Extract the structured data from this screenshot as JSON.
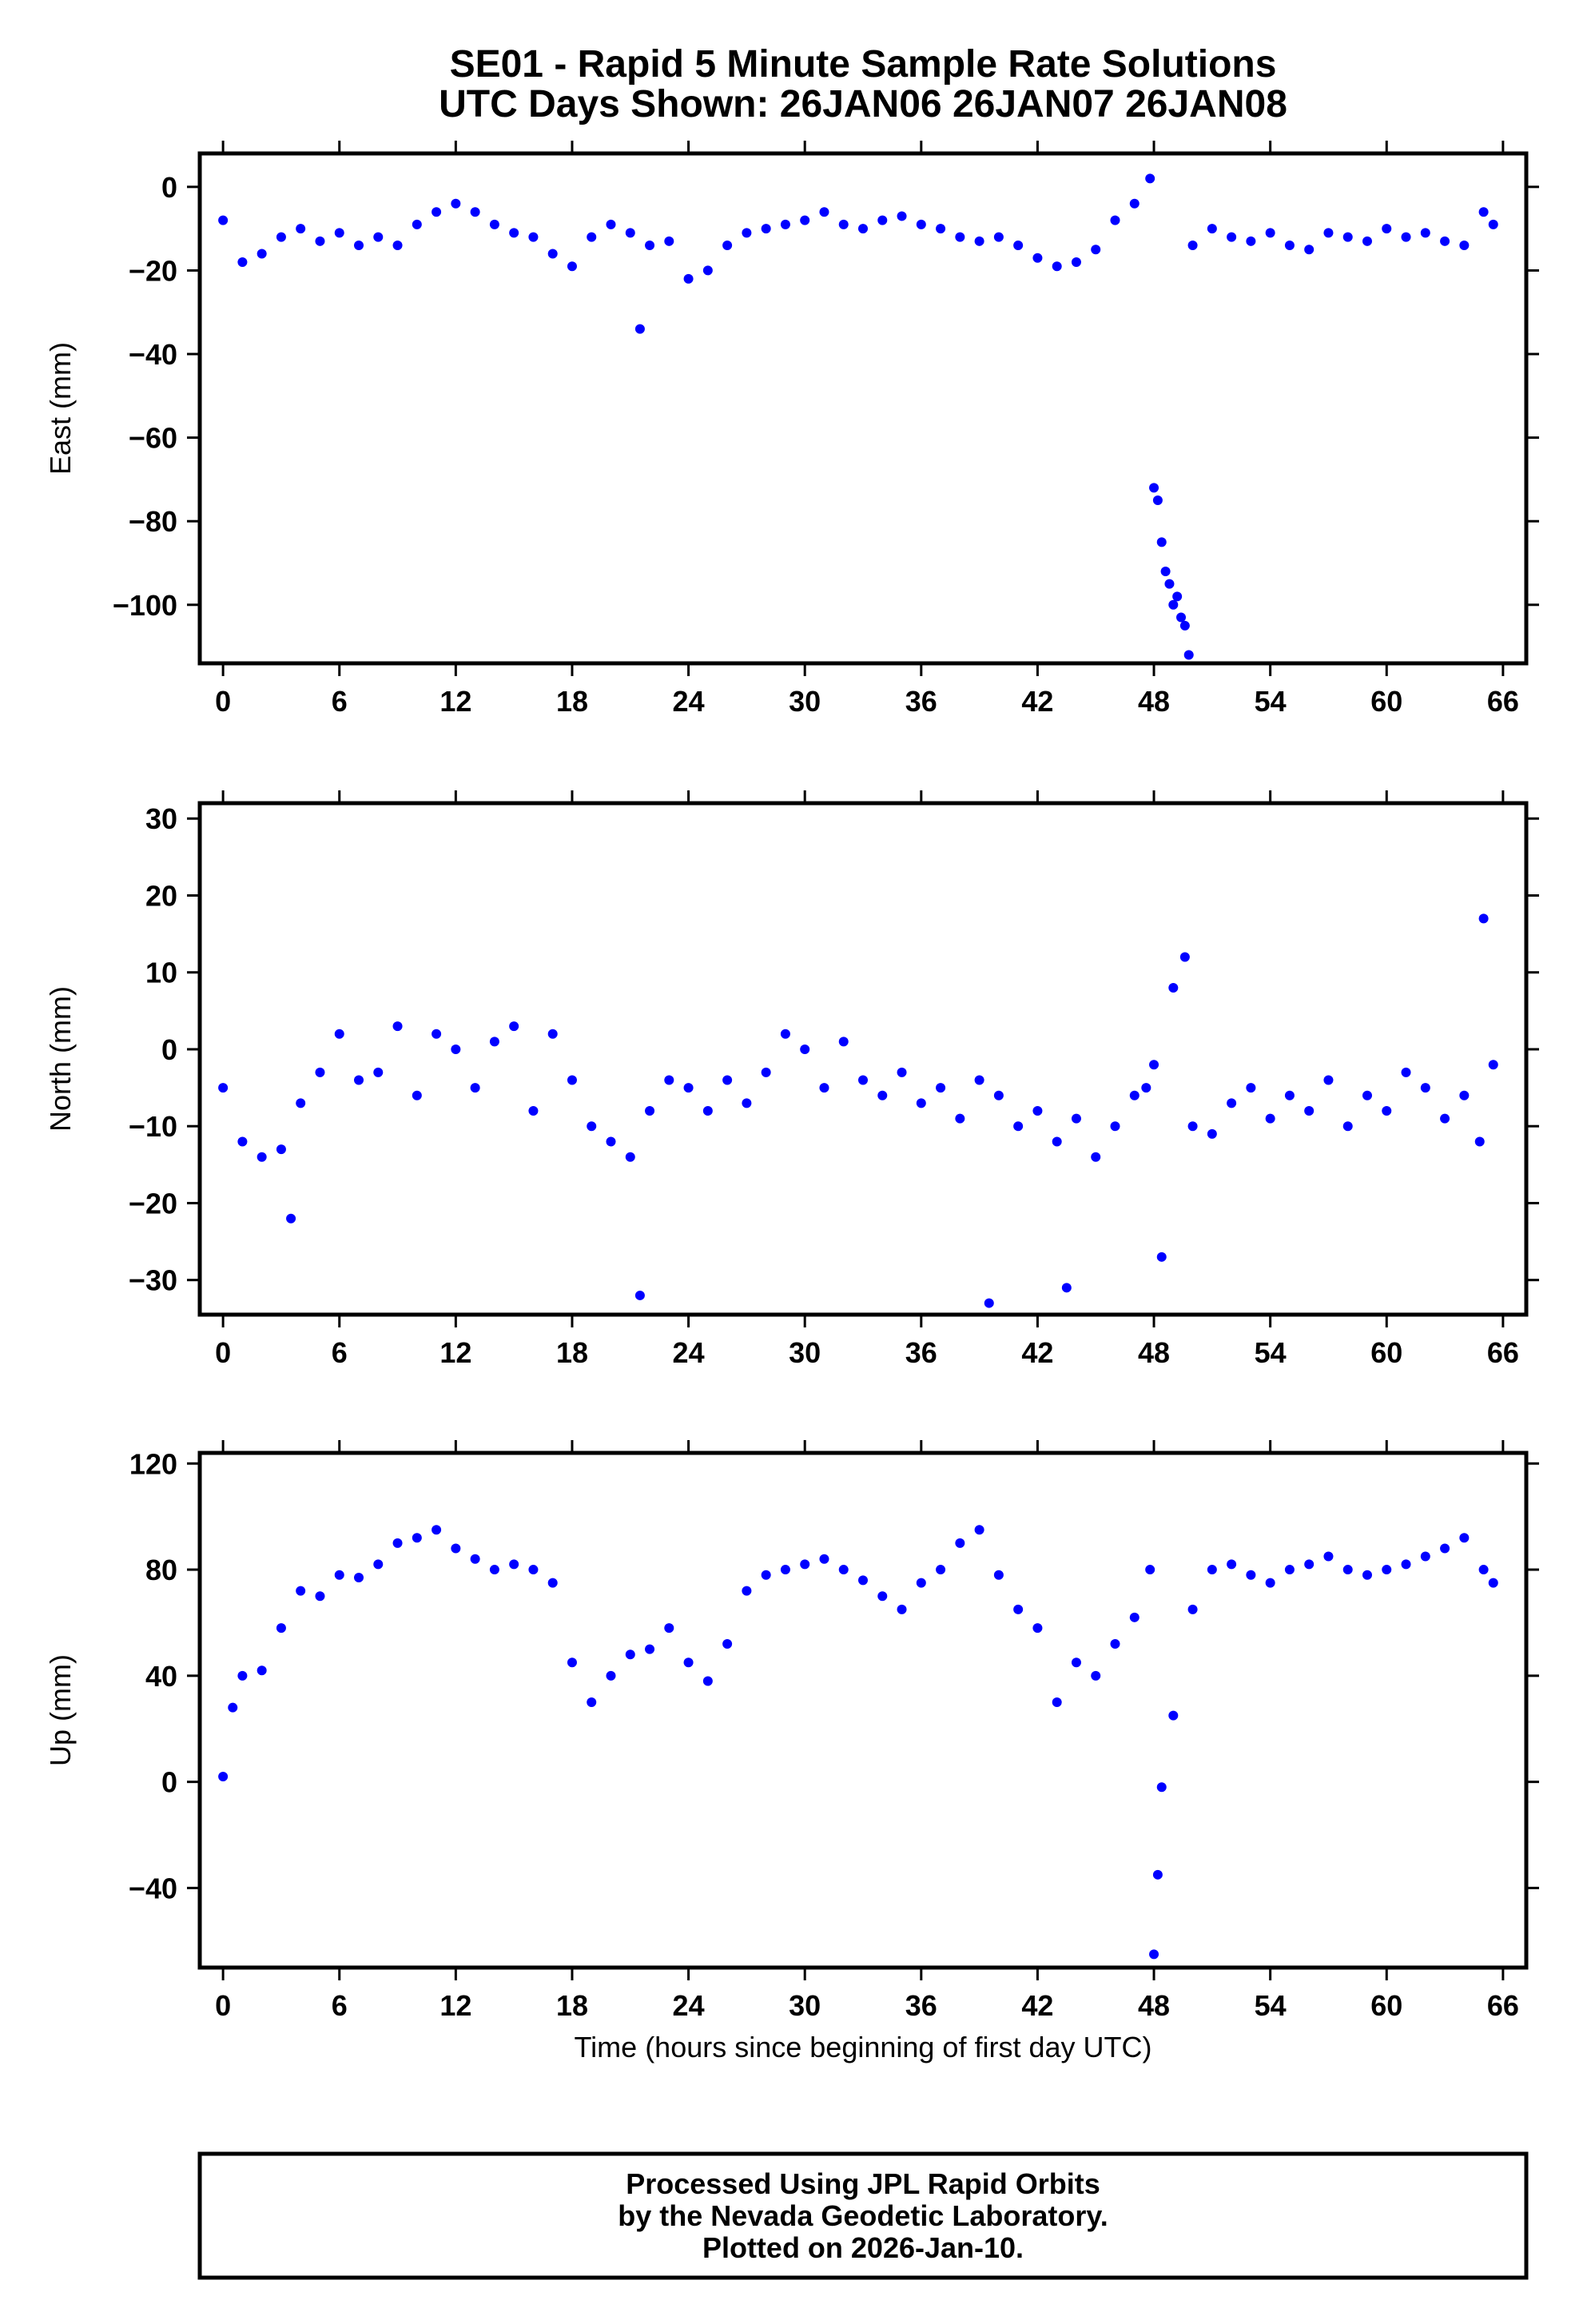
{
  "title_line1": "SE01 - Rapid 5 Minute Sample Rate Solutions",
  "title_line2": "UTC Days Shown:  26JAN06 26JAN07 26JAN08",
  "footer": {
    "line1": "Processed Using JPL Rapid Orbits",
    "line2": "by the Nevada Geodetic Laboratory.",
    "line3": "Plotted on 2026-Jan-10."
  },
  "colors": {
    "points": "#0000ff",
    "axes": "#000000"
  },
  "chart_data": [
    {
      "type": "scatter",
      "ylabel": "East (mm)",
      "xlabel": "",
      "xlim": [
        -1.2,
        67.2
      ],
      "ylim": [
        -114,
        8
      ],
      "xticks": [
        "0",
        "6",
        "12",
        "18",
        "24",
        "30",
        "36",
        "42",
        "48",
        "54",
        "60",
        "66"
      ],
      "yticks": [
        "0",
        "−20",
        "−40",
        "−60",
        "−80",
        "−100"
      ],
      "series": [
        {
          "x": [
            0,
            1,
            2,
            3,
            4,
            5,
            6,
            7,
            8,
            9,
            10,
            11,
            12,
            13,
            14,
            15,
            16,
            17,
            18,
            19,
            20,
            21,
            21.5,
            22,
            23,
            24,
            25,
            26,
            27,
            28,
            29,
            30,
            31,
            32,
            33,
            34,
            35,
            36,
            37,
            38,
            39,
            40,
            41,
            42,
            43,
            44,
            45,
            46,
            47,
            47.8,
            48,
            48.2,
            48.4,
            48.6,
            48.8,
            49,
            49.2,
            49.4,
            49.6,
            49.8,
            50,
            51,
            52,
            53,
            54,
            55,
            56,
            57,
            58,
            59,
            60,
            61,
            62,
            63,
            64,
            65,
            65.5
          ],
          "y": [
            -8,
            -18,
            -16,
            -12,
            -10,
            -13,
            -11,
            -14,
            -12,
            -14,
            -9,
            -6,
            -4,
            -6,
            -9,
            -11,
            -12,
            -16,
            -19,
            -12,
            -9,
            -11,
            -34,
            -14,
            -13,
            -22,
            -20,
            -14,
            -11,
            -10,
            -9,
            -8,
            -6,
            -9,
            -10,
            -8,
            -7,
            -9,
            -10,
            -12,
            -13,
            -12,
            -14,
            -17,
            -19,
            -18,
            -15,
            -8,
            -4,
            2,
            -72,
            -75,
            -85,
            -92,
            -95,
            -100,
            -98,
            -103,
            -105,
            -112,
            -14,
            -10,
            -12,
            -13,
            -11,
            -14,
            -15,
            -11,
            -12,
            -13,
            -10,
            -12,
            -11,
            -13,
            -14,
            -6,
            -9
          ]
        }
      ]
    },
    {
      "type": "scatter",
      "ylabel": "North (mm)",
      "xlabel": "",
      "xlim": [
        -1.2,
        67.2
      ],
      "ylim": [
        -34.5,
        32
      ],
      "xticks": [
        "0",
        "6",
        "12",
        "18",
        "24",
        "30",
        "36",
        "42",
        "48",
        "54",
        "60",
        "66"
      ],
      "yticks": [
        "30",
        "20",
        "10",
        "0",
        "−10",
        "−20",
        "−30"
      ],
      "series": [
        {
          "x": [
            0,
            1,
            2,
            3,
            3.5,
            4,
            5,
            6,
            7,
            8,
            9,
            10,
            11,
            12,
            13,
            14,
            15,
            16,
            17,
            18,
            19,
            20,
            21,
            21.5,
            22,
            23,
            24,
            25,
            26,
            27,
            28,
            29,
            30,
            31,
            32,
            33,
            34,
            35,
            36,
            37,
            38,
            39,
            39.5,
            40,
            41,
            42,
            43,
            43.5,
            44,
            45,
            46,
            47,
            47.6,
            48,
            48.4,
            49,
            49.6,
            50,
            51,
            52,
            53,
            54,
            55,
            56,
            57,
            58,
            59,
            60,
            61,
            62,
            63,
            64,
            64.8,
            65,
            65.5
          ],
          "y": [
            -5,
            -12,
            -14,
            -13,
            -22,
            -7,
            -3,
            2,
            -4,
            -3,
            3,
            -6,
            2,
            0,
            -5,
            1,
            3,
            -8,
            2,
            -4,
            -10,
            -12,
            -14,
            -32,
            -8,
            -4,
            -5,
            -8,
            -4,
            -7,
            -3,
            2,
            0,
            -5,
            1,
            -4,
            -6,
            -3,
            -7,
            -5,
            -9,
            -4,
            -33,
            -6,
            -10,
            -8,
            -12,
            -31,
            -9,
            -14,
            -10,
            -6,
            -5,
            -2,
            -27,
            8,
            12,
            -10,
            -11,
            -7,
            -5,
            -9,
            -6,
            -8,
            -4,
            -10,
            -6,
            -8,
            -3,
            -5,
            -9,
            -6,
            -12,
            17,
            -2
          ]
        }
      ]
    },
    {
      "type": "scatter",
      "ylabel": "Up (mm)",
      "xlabel": "Time (hours since beginning of first day UTC)",
      "xlim": [
        -1.2,
        67.2
      ],
      "ylim": [
        -70,
        124
      ],
      "xticks": [
        "0",
        "6",
        "12",
        "18",
        "24",
        "30",
        "36",
        "42",
        "48",
        "54",
        "60",
        "66"
      ],
      "yticks": [
        "120",
        "80",
        "40",
        "0",
        "−40"
      ],
      "series": [
        {
          "x": [
            0,
            0.5,
            1,
            2,
            3,
            4,
            5,
            6,
            7,
            8,
            9,
            10,
            11,
            12,
            13,
            14,
            15,
            16,
            17,
            18,
            19,
            20,
            21,
            22,
            23,
            24,
            25,
            26,
            27,
            28,
            29,
            30,
            31,
            32,
            33,
            34,
            35,
            36,
            37,
            38,
            39,
            40,
            41,
            42,
            43,
            44,
            45,
            46,
            47,
            47.8,
            48,
            48.2,
            48.4,
            49,
            50,
            51,
            52,
            53,
            54,
            55,
            56,
            57,
            58,
            59,
            60,
            61,
            62,
            63,
            64,
            65,
            65.5
          ],
          "y": [
            2,
            28,
            40,
            42,
            58,
            72,
            70,
            78,
            77,
            82,
            90,
            92,
            95,
            88,
            84,
            80,
            82,
            80,
            75,
            45,
            30,
            40,
            48,
            50,
            58,
            45,
            38,
            52,
            72,
            78,
            80,
            82,
            84,
            80,
            76,
            70,
            65,
            75,
            80,
            90,
            95,
            78,
            65,
            58,
            30,
            45,
            40,
            52,
            62,
            80,
            -65,
            -35,
            -2,
            25,
            65,
            80,
            82,
            78,
            75,
            80,
            82,
            85,
            80,
            78,
            80,
            82,
            85,
            88,
            92,
            80,
            75
          ]
        }
      ]
    }
  ]
}
